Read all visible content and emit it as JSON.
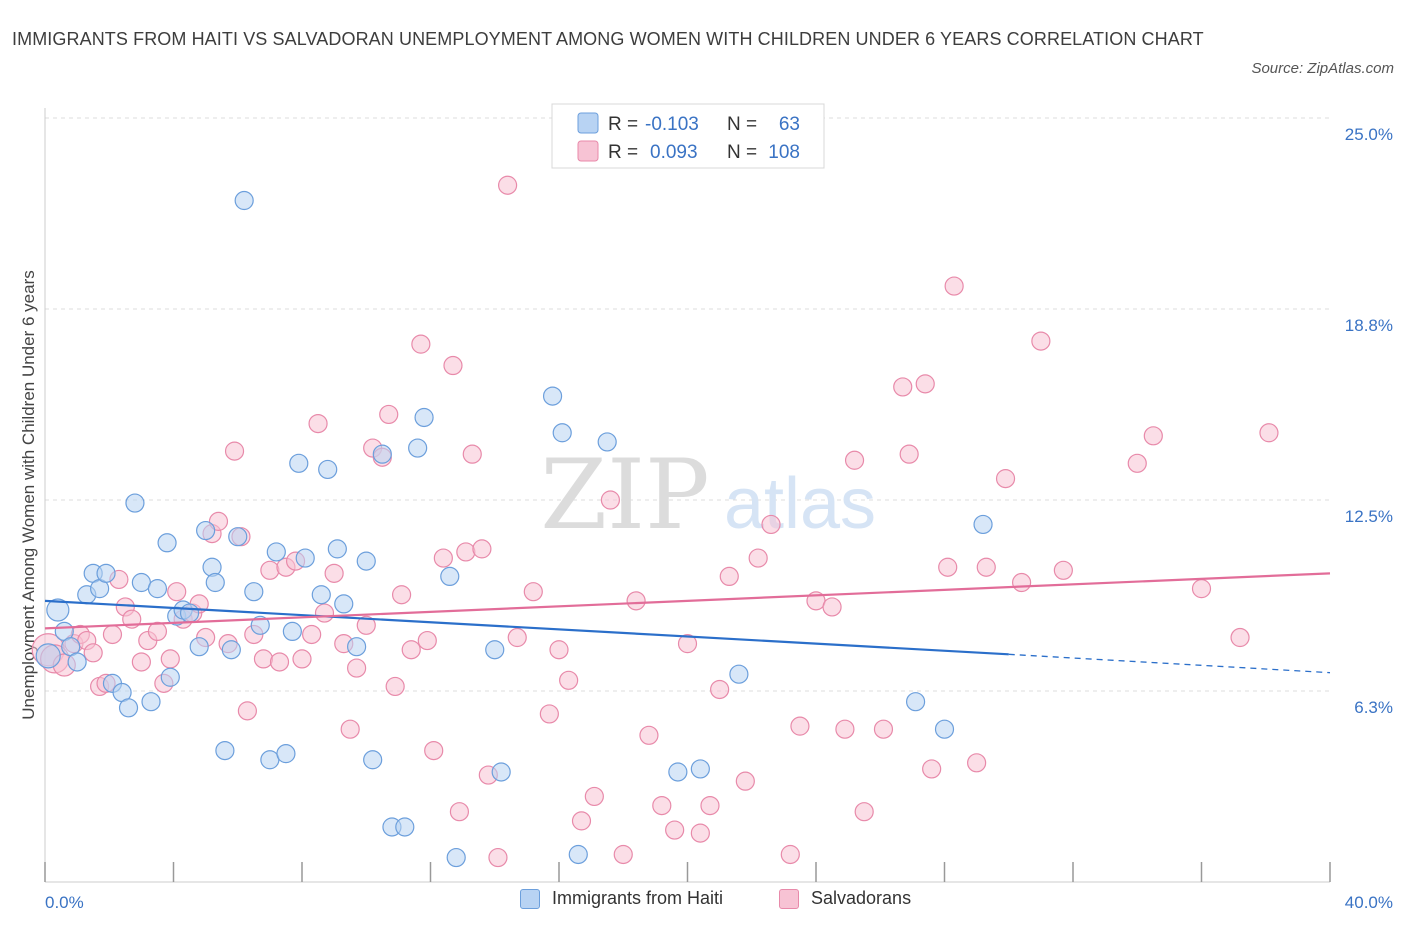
{
  "title": "IMMIGRANTS FROM HAITI VS SALVADORAN UNEMPLOYMENT AMONG WOMEN WITH CHILDREN UNDER 6 YEARS CORRELATION CHART",
  "source": "Source: ZipAtlas.com",
  "watermark": {
    "zip": "ZIP",
    "atlas": "atlas"
  },
  "colors": {
    "blue_fill": "#b8d3f3",
    "blue_stroke": "#6c9fdc",
    "blue_line": "#2b6fca",
    "pink_fill": "#f7c3d4",
    "pink_stroke": "#e88aaa",
    "pink_line": "#e26d99",
    "axis_label": "#3a73c4",
    "grid": "#dddddd"
  },
  "legend_top": {
    "rows": [
      {
        "r_label": "R =",
        "r_value": "-0.103",
        "n_label": "N =",
        "n_value": "63"
      },
      {
        "r_label": "R =",
        "r_value": "0.093",
        "n_label": "N =",
        "n_value": "108"
      }
    ]
  },
  "legend_bottom": {
    "items": [
      "Immigrants from Haiti",
      "Salvadorans"
    ]
  },
  "chart_data": {
    "type": "scatter",
    "ylabel": "Unemployment Among Women with Children Under 6 years",
    "xlabel": "",
    "xlim": [
      0,
      40
    ],
    "ylim": [
      0,
      25
    ],
    "x_tick_labels": [
      {
        "value": 0,
        "label": "0.0%"
      },
      {
        "value": 40,
        "label": "40.0%"
      }
    ],
    "y_tick_labels": [
      {
        "value": 6.25,
        "label": "6.3%"
      },
      {
        "value": 12.5,
        "label": "12.5%"
      },
      {
        "value": 18.75,
        "label": "18.8%"
      },
      {
        "value": 25.0,
        "label": "25.0%"
      }
    ],
    "grid": true,
    "series": [
      {
        "name": "Immigrants from Haiti",
        "r": -0.103,
        "n": 63,
        "trend": {
          "x0": 0,
          "y0": 9.2,
          "x1": 30,
          "y1": 7.45,
          "dashed_to_x": 40,
          "dashed_to_y": 6.85
        },
        "points": [
          [
            0.1,
            7.4,
            12
          ],
          [
            0.4,
            8.9,
            11
          ],
          [
            0.6,
            8.2,
            9
          ],
          [
            0.8,
            7.7,
            9
          ],
          [
            1.0,
            7.2,
            9
          ],
          [
            1.3,
            9.4,
            9
          ],
          [
            1.5,
            10.1,
            9
          ],
          [
            1.7,
            9.6,
            9
          ],
          [
            1.9,
            10.1,
            9
          ],
          [
            2.1,
            6.5,
            9
          ],
          [
            2.4,
            6.2,
            9
          ],
          [
            2.6,
            5.7,
            9
          ],
          [
            2.8,
            12.4,
            9
          ],
          [
            3.0,
            9.8,
            9
          ],
          [
            3.3,
            5.9,
            9
          ],
          [
            3.5,
            9.6,
            9
          ],
          [
            3.8,
            11.1,
            9
          ],
          [
            3.9,
            6.7,
            9
          ],
          [
            4.1,
            8.7,
            9
          ],
          [
            4.3,
            8.9,
            9
          ],
          [
            4.5,
            8.8,
            9
          ],
          [
            4.8,
            7.7,
            9
          ],
          [
            5.0,
            11.5,
            9
          ],
          [
            5.2,
            10.3,
            9
          ],
          [
            5.3,
            9.8,
            9
          ],
          [
            5.6,
            4.3,
            9
          ],
          [
            5.8,
            7.6,
            9
          ],
          [
            6.0,
            11.3,
            9
          ],
          [
            6.2,
            22.3,
            9
          ],
          [
            6.5,
            9.5,
            9
          ],
          [
            6.7,
            8.4,
            9
          ],
          [
            7.0,
            4.0,
            9
          ],
          [
            7.2,
            10.8,
            9
          ],
          [
            7.5,
            4.2,
            9
          ],
          [
            7.7,
            8.2,
            9
          ],
          [
            7.9,
            13.7,
            9
          ],
          [
            8.1,
            10.6,
            9
          ],
          [
            8.6,
            9.4,
            9
          ],
          [
            8.8,
            13.5,
            9
          ],
          [
            9.1,
            10.9,
            9
          ],
          [
            9.3,
            9.1,
            9
          ],
          [
            9.7,
            7.7,
            9
          ],
          [
            10.0,
            10.5,
            9
          ],
          [
            10.2,
            4.0,
            9
          ],
          [
            10.5,
            14.0,
            9
          ],
          [
            10.8,
            1.8,
            9
          ],
          [
            11.2,
            1.8,
            9
          ],
          [
            11.6,
            14.2,
            9
          ],
          [
            11.8,
            15.2,
            9
          ],
          [
            12.6,
            10.0,
            9
          ],
          [
            12.8,
            0.8,
            9
          ],
          [
            14.0,
            7.6,
            9
          ],
          [
            14.2,
            3.6,
            9
          ],
          [
            15.8,
            15.9,
            9
          ],
          [
            16.1,
            14.7,
            9
          ],
          [
            16.6,
            0.9,
            9
          ],
          [
            17.5,
            14.4,
            9
          ],
          [
            19.7,
            3.6,
            9
          ],
          [
            20.4,
            3.7,
            9
          ],
          [
            21.6,
            6.8,
            9
          ],
          [
            27.1,
            5.9,
            9
          ],
          [
            28.0,
            5.0,
            9
          ],
          [
            29.2,
            11.7,
            9
          ]
        ]
      },
      {
        "name": "Salvadorans",
        "r": 0.093,
        "n": 108,
        "trend": {
          "x0": 0,
          "y0": 8.3,
          "x1": 40,
          "y1": 10.1
        },
        "points": [
          [
            0.1,
            7.6,
            16
          ],
          [
            0.3,
            7.3,
            14
          ],
          [
            0.6,
            7.1,
            11
          ],
          [
            0.9,
            7.8,
            9
          ],
          [
            1.1,
            8.1,
            9
          ],
          [
            1.3,
            7.9,
            9
          ],
          [
            1.5,
            7.5,
            9
          ],
          [
            1.7,
            6.4,
            9
          ],
          [
            1.9,
            6.5,
            9
          ],
          [
            2.1,
            8.1,
            9
          ],
          [
            2.3,
            9.9,
            9
          ],
          [
            2.5,
            9.0,
            9
          ],
          [
            2.7,
            8.6,
            9
          ],
          [
            3.0,
            7.2,
            9
          ],
          [
            3.2,
            7.9,
            9
          ],
          [
            3.5,
            8.2,
            9
          ],
          [
            3.7,
            6.5,
            9
          ],
          [
            3.9,
            7.3,
            9
          ],
          [
            4.1,
            9.5,
            9
          ],
          [
            4.3,
            8.6,
            9
          ],
          [
            4.6,
            8.8,
            9
          ],
          [
            4.8,
            9.1,
            9
          ],
          [
            5.0,
            8.0,
            9
          ],
          [
            5.2,
            11.4,
            9
          ],
          [
            5.4,
            11.8,
            9
          ],
          [
            5.7,
            7.8,
            9
          ],
          [
            5.9,
            14.1,
            9
          ],
          [
            6.1,
            11.3,
            9
          ],
          [
            6.3,
            5.6,
            9
          ],
          [
            6.5,
            8.1,
            9
          ],
          [
            6.8,
            7.3,
            9
          ],
          [
            7.0,
            10.2,
            9
          ],
          [
            7.3,
            7.2,
            9
          ],
          [
            7.5,
            10.3,
            9
          ],
          [
            7.8,
            10.5,
            9
          ],
          [
            8.0,
            7.3,
            9
          ],
          [
            8.3,
            8.1,
            9
          ],
          [
            8.5,
            15.0,
            9
          ],
          [
            8.7,
            8.8,
            9
          ],
          [
            9.0,
            10.1,
            9
          ],
          [
            9.3,
            7.8,
            9
          ],
          [
            9.5,
            5.0,
            9
          ],
          [
            9.7,
            7.0,
            9
          ],
          [
            10.0,
            8.4,
            9
          ],
          [
            10.2,
            14.2,
            9
          ],
          [
            10.5,
            13.9,
            9
          ],
          [
            10.7,
            15.3,
            9
          ],
          [
            10.9,
            6.4,
            9
          ],
          [
            11.1,
            9.4,
            9
          ],
          [
            11.4,
            7.6,
            9
          ],
          [
            11.7,
            17.6,
            9
          ],
          [
            11.9,
            7.9,
            9
          ],
          [
            12.1,
            4.3,
            9
          ],
          [
            12.4,
            10.6,
            9
          ],
          [
            12.7,
            16.9,
            9
          ],
          [
            12.9,
            2.3,
            9
          ],
          [
            13.1,
            10.8,
            9
          ],
          [
            13.3,
            14.0,
            9
          ],
          [
            13.6,
            10.9,
            9
          ],
          [
            13.8,
            3.5,
            9
          ],
          [
            14.1,
            0.8,
            9
          ],
          [
            14.4,
            22.8,
            9
          ],
          [
            14.7,
            8.0,
            9
          ],
          [
            15.2,
            9.5,
            9
          ],
          [
            15.7,
            5.5,
            9
          ],
          [
            16.0,
            7.6,
            9
          ],
          [
            16.3,
            6.6,
            9
          ],
          [
            16.7,
            2.0,
            9
          ],
          [
            17.1,
            2.8,
            9
          ],
          [
            17.6,
            12.5,
            9
          ],
          [
            18.0,
            0.9,
            9
          ],
          [
            18.4,
            9.2,
            9
          ],
          [
            18.8,
            4.8,
            9
          ],
          [
            19.2,
            2.5,
            9
          ],
          [
            19.6,
            1.7,
            9
          ],
          [
            20.0,
            7.8,
            9
          ],
          [
            20.4,
            1.6,
            9
          ],
          [
            20.7,
            2.5,
            9
          ],
          [
            21.0,
            6.3,
            9
          ],
          [
            21.3,
            10.0,
            9
          ],
          [
            21.8,
            3.3,
            9
          ],
          [
            22.2,
            10.6,
            9
          ],
          [
            22.6,
            11.7,
            9
          ],
          [
            23.2,
            0.9,
            9
          ],
          [
            23.5,
            5.1,
            9
          ],
          [
            24.0,
            9.2,
            9
          ],
          [
            24.5,
            9.0,
            9
          ],
          [
            24.9,
            5.0,
            9
          ],
          [
            25.2,
            13.8,
            9
          ],
          [
            25.5,
            2.3,
            9
          ],
          [
            26.1,
            5.0,
            9
          ],
          [
            26.7,
            16.2,
            9
          ],
          [
            26.9,
            14.0,
            9
          ],
          [
            27.4,
            16.3,
            9
          ],
          [
            27.6,
            3.7,
            9
          ],
          [
            28.1,
            10.3,
            9
          ],
          [
            28.3,
            19.5,
            9
          ],
          [
            29.0,
            3.9,
            9
          ],
          [
            29.3,
            10.3,
            9
          ],
          [
            29.9,
            13.2,
            9
          ],
          [
            30.4,
            9.8,
            9
          ],
          [
            31.0,
            17.7,
            9
          ],
          [
            31.7,
            10.2,
            9
          ],
          [
            34.0,
            13.7,
            9
          ],
          [
            34.5,
            14.6,
            9
          ],
          [
            36.0,
            9.6,
            9
          ],
          [
            37.2,
            8.0,
            9
          ],
          [
            38.1,
            14.7,
            9
          ]
        ]
      }
    ]
  }
}
